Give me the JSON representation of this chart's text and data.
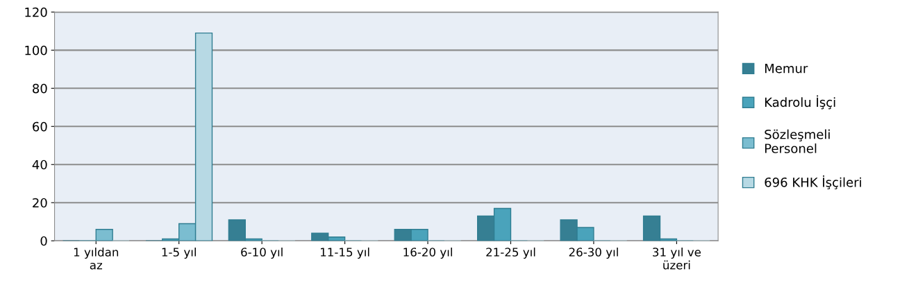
{
  "chart_data": {
    "type": "bar",
    "categories": [
      "1 yıldan\naz",
      "1-5 yıl",
      "6-10 yıl",
      "11-15 yıl",
      "16-20 yıl",
      "21-25 yıl",
      "26-30 yıl",
      "31 yıl ve\nüzeri"
    ],
    "series": [
      {
        "name": "Memur",
        "color": "#367f93",
        "values": [
          0,
          0,
          11,
          4,
          6,
          13,
          11,
          13
        ]
      },
      {
        "name": "Kadrolu İşçi",
        "color": "#4aa3bb",
        "values": [
          0,
          1,
          1,
          2,
          6,
          17,
          7,
          1
        ]
      },
      {
        "name": "Sözleşmeli\nPersonel",
        "color": "#7bbdd0",
        "values": [
          6,
          9,
          0,
          0,
          0,
          0,
          0,
          0
        ]
      },
      {
        "name": "696 KHK İşçileri",
        "color": "#b7d9e4",
        "values": [
          0,
          109,
          0,
          0,
          0,
          0,
          0,
          0
        ]
      }
    ],
    "ylim": [
      0,
      120
    ],
    "yticks": [
      0,
      20,
      40,
      60,
      80,
      100,
      120
    ],
    "grid": "y",
    "legend": "right"
  }
}
